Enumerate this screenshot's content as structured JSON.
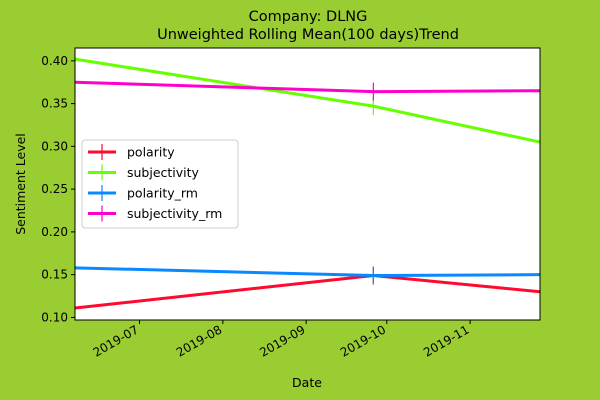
{
  "chart_data": {
    "type": "line",
    "title": "Company: DLNG",
    "subtitle": "Unweighted Rolling Mean(100 days)Trend",
    "xlabel": "Date",
    "ylabel": "Sentiment Level",
    "xlim": [
      "2019-06-07",
      "2019-11-27"
    ],
    "ylim": [
      0.097,
      0.415
    ],
    "x_ticks": [
      "2019-07",
      "2019-08",
      "2019-09",
      "2019-10",
      "2019-11"
    ],
    "y_ticks": [
      "0.10",
      "0.15",
      "0.20",
      "0.25",
      "0.30",
      "0.35",
      "0.40"
    ],
    "x_tick_values": [
      "2019-07-01",
      "2019-08-01",
      "2019-09-01",
      "2019-10-01",
      "2019-11-01"
    ],
    "y_tick_values": [
      0.1,
      0.15,
      0.2,
      0.25,
      0.3,
      0.35,
      0.4
    ],
    "grid": false,
    "legend_position": "center-left",
    "series": [
      {
        "name": "polarity",
        "color": "#ff0a2f",
        "marker_x": "2019-09-26",
        "points": [
          [
            "2019-06-07",
            0.111
          ],
          [
            "2019-09-26",
            0.149
          ],
          [
            "2019-11-27",
            0.13
          ]
        ]
      },
      {
        "name": "subjectivity",
        "color": "#66ff00",
        "marker_x": "2019-09-26",
        "points": [
          [
            "2019-06-07",
            0.402
          ],
          [
            "2019-09-26",
            0.347
          ],
          [
            "2019-11-27",
            0.305
          ]
        ]
      },
      {
        "name": "polarity_rm",
        "color": "#0a88ff",
        "marker_x": "2019-09-26",
        "points": [
          [
            "2019-06-07",
            0.158
          ],
          [
            "2019-09-26",
            0.149
          ],
          [
            "2019-11-27",
            0.15
          ]
        ]
      },
      {
        "name": "subjectivity_rm",
        "color": "#ff00cc",
        "marker_x": "2019-09-26",
        "points": [
          [
            "2019-06-07",
            0.375
          ],
          [
            "2019-09-26",
            0.364
          ],
          [
            "2019-11-27",
            0.365
          ]
        ]
      }
    ]
  }
}
